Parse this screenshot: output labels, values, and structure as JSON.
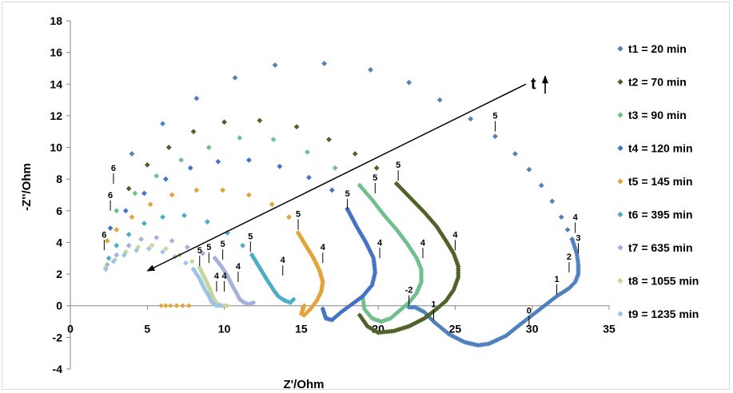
{
  "chart_data": {
    "type": "scatter",
    "title": "",
    "xlabel": "Z'/Ohm",
    "ylabel": "-Z''/Ohm",
    "xlim": [
      0,
      35
    ],
    "ylim": [
      -4,
      18
    ],
    "x_ticks": [
      0,
      5,
      10,
      15,
      20,
      25,
      30,
      35
    ],
    "y_ticks": [
      -4,
      -2,
      0,
      2,
      4,
      6,
      8,
      10,
      12,
      14,
      16,
      18
    ],
    "grid": false,
    "legend_position": "right",
    "marker": "diamond",
    "series": [
      {
        "name": "t1 = 20 min",
        "color": "#4f81bd",
        "sparse": [
          [
            4.0,
            9.6
          ],
          [
            6.0,
            11.5
          ],
          [
            8.2,
            13.1
          ],
          [
            10.7,
            14.4
          ],
          [
            13.3,
            15.2
          ],
          [
            16.5,
            15.3
          ],
          [
            19.5,
            14.9
          ],
          [
            22.0,
            14.1
          ],
          [
            24.0,
            13.0
          ],
          [
            26.0,
            11.8
          ],
          [
            27.6,
            10.7
          ],
          [
            28.9,
            9.6
          ],
          [
            29.8,
            8.6
          ],
          [
            30.6,
            7.6
          ],
          [
            31.3,
            6.6
          ],
          [
            31.9,
            5.6
          ],
          [
            32.3,
            4.8
          ],
          [
            32.6,
            4.2
          ]
        ],
        "dense": [
          [
            32.6,
            4.2
          ],
          [
            32.9,
            3.3
          ],
          [
            33.0,
            2.6
          ],
          [
            33.0,
            2.0
          ],
          [
            32.8,
            1.5
          ],
          [
            32.4,
            1.1
          ],
          [
            31.6,
            0.6
          ],
          [
            30.8,
            0.0
          ],
          [
            30.0,
            -0.6
          ],
          [
            29.2,
            -1.2
          ],
          [
            28.3,
            -1.9
          ],
          [
            27.2,
            -2.4
          ],
          [
            26.5,
            -2.5
          ],
          [
            25.6,
            -2.3
          ],
          [
            24.6,
            -1.8
          ],
          [
            23.6,
            -1.0
          ],
          [
            23.0,
            -0.4
          ],
          [
            22.4,
            -0.1
          ],
          [
            22.0,
            -0.1
          ]
        ]
      },
      {
        "name": "t2 = 70 min",
        "color": "#4f6228",
        "sparse": [
          [
            3.8,
            7.4
          ],
          [
            5.0,
            8.9
          ],
          [
            6.4,
            10.0
          ],
          [
            8.0,
            11.0
          ],
          [
            10.0,
            11.6
          ],
          [
            12.3,
            11.7
          ],
          [
            14.7,
            11.3
          ],
          [
            16.8,
            10.5
          ],
          [
            18.5,
            9.6
          ],
          [
            19.9,
            8.7
          ],
          [
            21.2,
            7.7
          ]
        ],
        "dense": [
          [
            21.2,
            7.7
          ],
          [
            22.0,
            6.9
          ],
          [
            23.0,
            5.9
          ],
          [
            23.8,
            5.0
          ],
          [
            24.4,
            4.1
          ],
          [
            24.9,
            3.3
          ],
          [
            25.2,
            2.5
          ],
          [
            25.2,
            1.8
          ],
          [
            24.9,
            1.0
          ],
          [
            24.4,
            0.3
          ],
          [
            23.8,
            -0.2
          ],
          [
            23.0,
            -0.8
          ],
          [
            22.0,
            -1.3
          ],
          [
            21.0,
            -1.6
          ],
          [
            20.0,
            -1.7
          ],
          [
            19.3,
            -1.3
          ],
          [
            18.8,
            -0.6
          ]
        ]
      },
      {
        "name": "t3 = 90 min",
        "color": "#70bf8c",
        "sparse": [
          [
            3.0,
            6.0
          ],
          [
            4.2,
            7.1
          ],
          [
            5.6,
            8.2
          ],
          [
            7.2,
            9.2
          ],
          [
            9.0,
            10.0
          ],
          [
            11.0,
            10.6
          ],
          [
            13.2,
            10.5
          ],
          [
            15.4,
            9.7
          ],
          [
            17.2,
            8.7
          ],
          [
            18.8,
            7.6
          ]
        ],
        "dense": [
          [
            18.8,
            7.6
          ],
          [
            19.6,
            6.7
          ],
          [
            20.4,
            5.7
          ],
          [
            21.2,
            4.8
          ],
          [
            21.9,
            3.9
          ],
          [
            22.5,
            3.0
          ],
          [
            22.8,
            2.3
          ],
          [
            22.8,
            1.5
          ],
          [
            22.5,
            0.8
          ],
          [
            22.0,
            0.2
          ],
          [
            21.4,
            -0.3
          ],
          [
            20.8,
            -0.8
          ],
          [
            20.2,
            -1.0
          ],
          [
            19.6,
            -0.8
          ],
          [
            19.1,
            -0.2
          ],
          [
            19.0,
            0.5
          ]
        ]
      },
      {
        "name": "t4 = 120 min",
        "color": "#4472c4",
        "sparse": [
          [
            2.6,
            4.9
          ],
          [
            3.6,
            6.0
          ],
          [
            4.8,
            7.1
          ],
          [
            6.2,
            8.0
          ],
          [
            7.8,
            8.7
          ],
          [
            9.6,
            9.1
          ],
          [
            11.6,
            9.2
          ],
          [
            13.6,
            8.8
          ],
          [
            15.5,
            8.1
          ],
          [
            17.0,
            7.3
          ],
          [
            18.0,
            6.1
          ]
        ],
        "dense": [
          [
            18.0,
            6.1
          ],
          [
            18.6,
            5.0
          ],
          [
            19.2,
            4.0
          ],
          [
            19.7,
            3.0
          ],
          [
            19.8,
            2.1
          ],
          [
            19.6,
            1.3
          ],
          [
            19.0,
            0.6
          ],
          [
            18.3,
            0.1
          ],
          [
            17.6,
            -0.4
          ],
          [
            17.0,
            -0.9
          ],
          [
            16.6,
            -0.8
          ],
          [
            16.4,
            -0.2
          ]
        ]
      },
      {
        "name": "t5 = 145 min",
        "color": "#e2a33a",
        "sparse": [
          [
            2.4,
            4.1
          ],
          [
            3.0,
            4.8
          ],
          [
            4.0,
            5.6
          ],
          [
            5.2,
            6.4
          ],
          [
            6.6,
            7.0
          ],
          [
            8.2,
            7.3
          ],
          [
            9.9,
            7.3
          ],
          [
            11.6,
            7.0
          ],
          [
            13.1,
            6.4
          ],
          [
            14.2,
            5.6
          ],
          [
            14.8,
            4.6
          ]
        ],
        "dense": [
          [
            14.8,
            4.6
          ],
          [
            15.3,
            3.8
          ],
          [
            15.8,
            3.0
          ],
          [
            16.2,
            2.2
          ],
          [
            16.4,
            1.5
          ],
          [
            16.3,
            0.9
          ],
          [
            16.0,
            0.3
          ],
          [
            15.6,
            -0.2
          ],
          [
            15.2,
            -0.6
          ],
          [
            15.0,
            -0.5
          ],
          [
            15.2,
            0.0
          ]
        ]
      },
      {
        "name": "t6 = 395 min",
        "color": "#4bacc6",
        "sparse": [
          [
            2.5,
            3.0
          ],
          [
            3.0,
            3.8
          ],
          [
            3.8,
            4.5
          ],
          [
            4.8,
            5.2
          ],
          [
            6.0,
            5.6
          ],
          [
            7.4,
            5.7
          ],
          [
            8.9,
            5.3
          ],
          [
            10.2,
            4.6
          ],
          [
            11.2,
            3.8
          ],
          [
            11.8,
            3.2
          ]
        ],
        "dense": [
          [
            11.8,
            3.2
          ],
          [
            12.3,
            2.4
          ],
          [
            12.8,
            1.6
          ],
          [
            13.2,
            1.0
          ],
          [
            13.5,
            0.6
          ],
          [
            13.8,
            0.4
          ],
          [
            14.0,
            0.3
          ],
          [
            14.3,
            0.2
          ],
          [
            14.5,
            0.4
          ]
        ]
      },
      {
        "name": "t7 = 635 min",
        "color": "#a6b1d8",
        "sparse": [
          [
            2.4,
            2.6
          ],
          [
            3.0,
            3.2
          ],
          [
            3.8,
            3.8
          ],
          [
            4.6,
            4.2
          ],
          [
            5.6,
            4.3
          ],
          [
            6.6,
            4.1
          ],
          [
            7.6,
            3.7
          ],
          [
            8.6,
            3.3
          ],
          [
            9.4,
            3.0
          ]
        ],
        "dense": [
          [
            9.4,
            3.0
          ],
          [
            9.8,
            2.5
          ],
          [
            10.2,
            1.9
          ],
          [
            10.5,
            1.3
          ],
          [
            10.8,
            0.8
          ],
          [
            11.0,
            0.4
          ],
          [
            11.3,
            0.2
          ],
          [
            11.6,
            0.1
          ],
          [
            11.9,
            0.2
          ]
        ]
      },
      {
        "name": "t8 = 1055 min",
        "color": "#c4d79b",
        "sparse": [
          [
            2.3,
            2.4
          ],
          [
            2.9,
            2.9
          ],
          [
            3.6,
            3.4
          ],
          [
            4.4,
            3.7
          ],
          [
            5.3,
            3.8
          ],
          [
            6.2,
            3.6
          ],
          [
            7.1,
            3.2
          ],
          [
            7.9,
            2.8
          ],
          [
            8.4,
            2.4
          ]
        ],
        "dense": [
          [
            8.4,
            2.4
          ],
          [
            8.7,
            1.8
          ],
          [
            9.0,
            1.2
          ],
          [
            9.2,
            0.7
          ],
          [
            9.4,
            0.3
          ],
          [
            9.6,
            0.1
          ],
          [
            9.9,
            0.0
          ],
          [
            10.2,
            0.0
          ]
        ]
      },
      {
        "name": "t9 = 1235 min",
        "color": "#9dc3e6",
        "sparse": [
          [
            2.3,
            2.3
          ],
          [
            2.8,
            2.8
          ],
          [
            3.5,
            3.2
          ],
          [
            4.3,
            3.5
          ],
          [
            5.1,
            3.6
          ],
          [
            6.0,
            3.4
          ],
          [
            6.8,
            3.1
          ],
          [
            7.5,
            2.7
          ],
          [
            8.0,
            2.3
          ]
        ],
        "dense": [
          [
            8.0,
            2.3
          ],
          [
            8.4,
            1.7
          ],
          [
            8.7,
            1.1
          ],
          [
            9.0,
            0.6
          ],
          [
            9.2,
            0.2
          ],
          [
            9.5,
            0.0
          ],
          [
            9.8,
            0.0
          ]
        ]
      }
    ],
    "extra_points": {
      "color": "#e2a33a",
      "points": [
        [
          5.9,
          0.0
        ],
        [
          6.2,
          0.0
        ],
        [
          6.5,
          0.0
        ],
        [
          6.9,
          0.0
        ],
        [
          7.3,
          0.0
        ],
        [
          7.7,
          0.0
        ]
      ]
    },
    "annotations": [
      {
        "text": "6",
        "x": 2.8,
        "y": 7.6
      },
      {
        "text": "6",
        "x": 2.6,
        "y": 5.9
      },
      {
        "text": "6",
        "x": 2.2,
        "y": 3.4
      },
      {
        "text": "5",
        "x": 8.4,
        "y": 2.4
      },
      {
        "text": "5",
        "x": 9.0,
        "y": 2.6
      },
      {
        "text": "5",
        "x": 9.9,
        "y": 2.8
      },
      {
        "text": "5",
        "x": 11.7,
        "y": 3.3
      },
      {
        "text": "5",
        "x": 14.8,
        "y": 4.7
      },
      {
        "text": "5",
        "x": 18.0,
        "y": 6.0
      },
      {
        "text": "5",
        "x": 19.8,
        "y": 7.0
      },
      {
        "text": "5",
        "x": 21.3,
        "y": 7.8
      },
      {
        "text": "5",
        "x": 27.6,
        "y": 10.9
      },
      {
        "text": "4",
        "x": 9.5,
        "y": 0.8
      },
      {
        "text": "4",
        "x": 10.0,
        "y": 0.8
      },
      {
        "text": "4",
        "x": 10.9,
        "y": 1.4
      },
      {
        "text": "4",
        "x": 13.8,
        "y": 1.8
      },
      {
        "text": "4",
        "x": 16.4,
        "y": 2.6
      },
      {
        "text": "4",
        "x": 20.1,
        "y": 2.9
      },
      {
        "text": "4",
        "x": 22.9,
        "y": 2.9
      },
      {
        "text": "4",
        "x": 25.0,
        "y": 3.4
      },
      {
        "text": "4",
        "x": 32.8,
        "y": 4.5
      },
      {
        "text": "3",
        "x": 33.0,
        "y": 3.2
      },
      {
        "text": "2",
        "x": 32.4,
        "y": 2.0
      },
      {
        "text": "1",
        "x": 31.6,
        "y": 0.6
      },
      {
        "text": "1",
        "x": 23.6,
        "y": -1.0
      },
      {
        "text": "0",
        "x": 29.8,
        "y": -1.4
      },
      {
        "text": "-2",
        "x": 22.0,
        "y": -0.1
      }
    ],
    "time_arrow": {
      "from": [
        29.6,
        14.0
      ],
      "to": [
        5.0,
        2.2
      ],
      "label": "t"
    }
  }
}
